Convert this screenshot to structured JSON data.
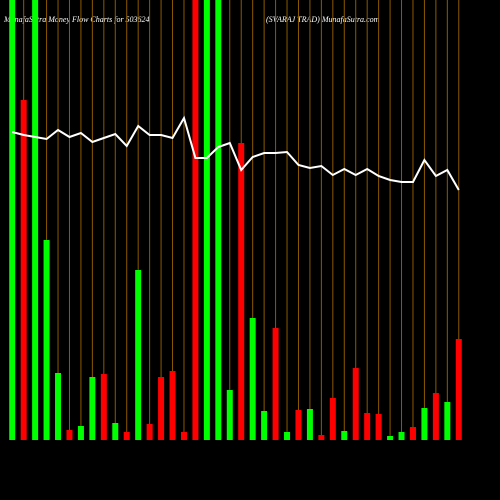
{
  "chart_data": {
    "type": "bar",
    "title": "MunafaSutra  Money Flow  Charts for 503624",
    "subtitle": "(SVARAJ TRAD) MunafaSutra.com",
    "categories": [
      null,
      null,
      null,
      null,
      null,
      null,
      null,
      null,
      null,
      null,
      null,
      null,
      null,
      null,
      null,
      null,
      null,
      null,
      null,
      null,
      null,
      null,
      null,
      null,
      null,
      null,
      null,
      null,
      null,
      null,
      null,
      null,
      null,
      null,
      null,
      null,
      null,
      null,
      null,
      null
    ],
    "values": [
      440,
      340,
      440,
      200,
      67,
      10,
      14,
      63,
      66,
      17,
      8,
      170,
      16,
      63,
      69,
      8,
      440,
      440,
      440,
      50,
      297,
      122,
      29,
      112,
      8,
      30,
      31,
      5,
      42,
      9,
      72,
      27,
      26,
      4,
      8,
      13,
      32,
      47,
      38,
      101
    ],
    "colors": [
      "#00ff00",
      "#ff0000",
      "#00ff00",
      "#00ff00",
      "#00ff00",
      "#ff0000",
      "#00ff00",
      "#00ff00",
      "#ff0000",
      "#00ff00",
      "#ff0000",
      "#00ff00",
      "#ff0000",
      "#ff0000",
      "#ff0000",
      "#ff0000",
      "#ff0000",
      "#00ff00",
      "#00ff00",
      "#00ff00",
      "#ff0000",
      "#00ff00",
      "#00ff00",
      "#ff0000",
      "#00ff00",
      "#ff0000",
      "#00ff00",
      "#ff0000",
      "#ff0000",
      "#00ff00",
      "#ff0000",
      "#ff0000",
      "#ff0000",
      "#00ff00",
      "#00ff00",
      "#ff0000",
      "#00ff00",
      "#ff0000",
      "#00ff00",
      "#ff0000"
    ],
    "line": {
      "color": "#ffffff",
      "values": [
        308,
        305,
        303,
        301,
        310,
        303,
        307,
        298,
        302,
        306,
        294,
        314,
        305,
        305,
        302,
        322,
        282,
        282,
        293,
        297,
        270,
        283,
        287,
        287,
        288,
        275,
        272,
        274,
        265,
        271,
        265,
        271,
        264,
        260,
        258,
        258,
        280,
        264,
        270,
        250
      ]
    },
    "grid_color": "#8b5a00",
    "ylim": [
      0,
      440
    ]
  }
}
